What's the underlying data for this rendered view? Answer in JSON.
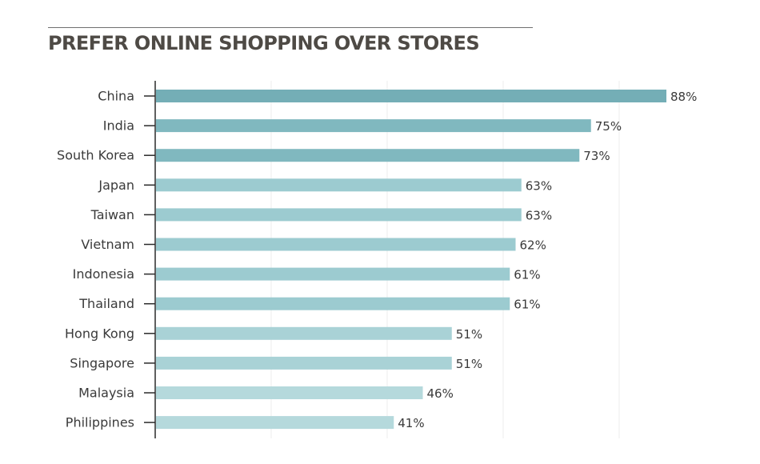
{
  "chart_data": {
    "type": "bar",
    "orientation": "horizontal",
    "title": "PREFER ONLINE SHOPPING OVER STORES",
    "xlabel": "",
    "ylabel": "",
    "value_suffix": "%",
    "xlim": [
      0,
      100
    ],
    "grid": "vertical",
    "categories": [
      "China",
      "India",
      "South Korea",
      "Japan",
      "Taiwan",
      "Vietnam",
      "Indonesia",
      "Thailand",
      "Hong Kong",
      "Singapore",
      "Malaysia",
      "Philippines"
    ],
    "values": [
      88,
      75,
      73,
      63,
      63,
      62,
      61,
      61,
      51,
      51,
      46,
      41
    ],
    "value_labels": [
      "88%",
      "75%",
      "73%",
      "63%",
      "63%",
      "62%",
      "61%",
      "61%",
      "51%",
      "51%",
      "46%",
      "41%"
    ],
    "bar_colors": [
      "#74aeb6",
      "#80b8bf",
      "#80b8bf",
      "#9ccbd0",
      "#9ccbd0",
      "#9ccbd0",
      "#9ccbd0",
      "#9ccbd0",
      "#a9d2d6",
      "#a9d2d6",
      "#b5d9dc",
      "#b5d9dc"
    ],
    "colors": {
      "axis": "#2a2a2a",
      "grid": "#ececec",
      "text": "#3a3a3a",
      "title": "#4e4a45"
    }
  }
}
